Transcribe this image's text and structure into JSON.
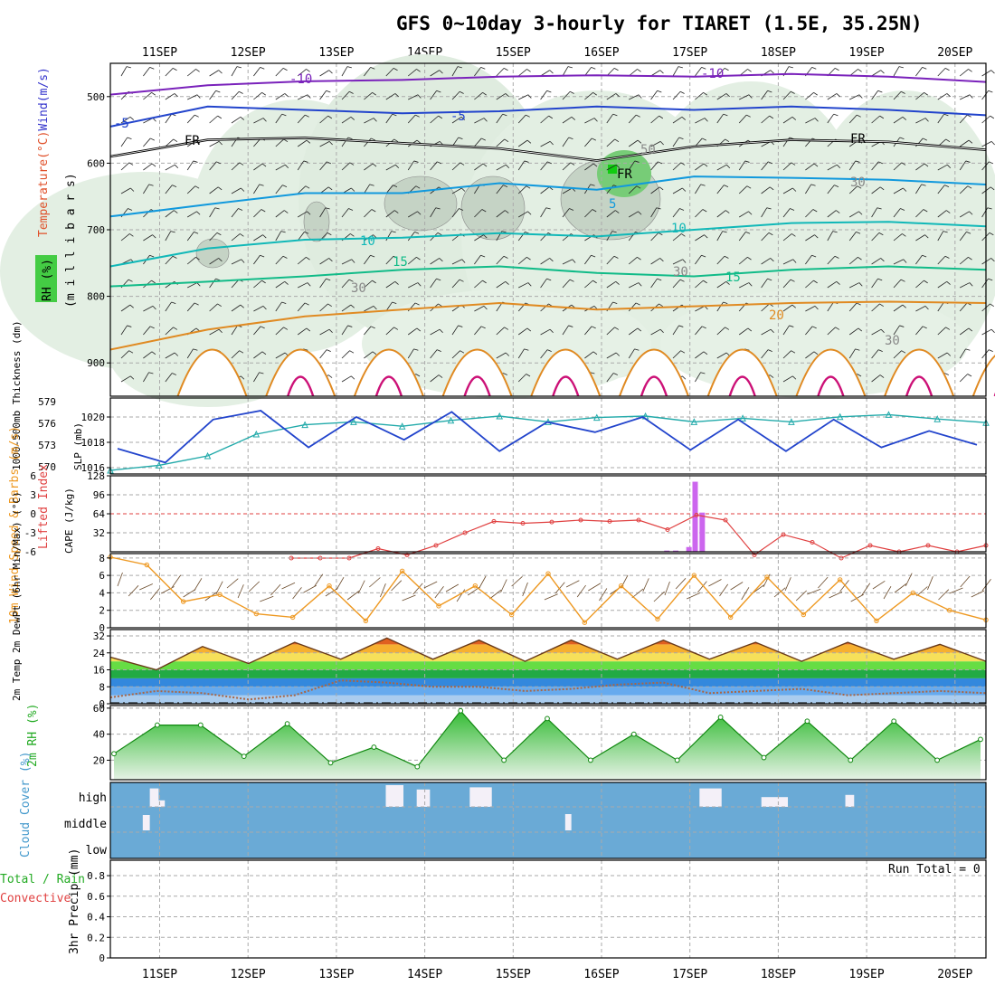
{
  "title": "GFS 0~10day 3-hourly for TIARET (1.5E, 35.25N)",
  "colors": {
    "green_rh": "#33cc33",
    "cyan_thickness": "#22aaaa",
    "blue_slp": "#2244cc",
    "purple_cape": "#cc66ee",
    "red_li": "#e04040",
    "orange_wind": "#ee9922",
    "cloud_blue": "#6aaad6",
    "precip_green": "#22aa22"
  },
  "chart_data": [
    {
      "panel": "upper-air",
      "type": "area",
      "x": [
        "11SEP",
        "12SEP",
        "13SEP",
        "14SEP",
        "15SEP",
        "16SEP",
        "17SEP",
        "18SEP",
        "19SEP",
        "20SEP"
      ],
      "ylabel_parts": [
        "Temperature",
        "(°C)",
        "Wind",
        "(m/s)"
      ],
      "ylabel_units": "(m i l l i b a r s)",
      "rh_legend": "RH (%)",
      "yticks": [
        500,
        600,
        700,
        800,
        900
      ],
      "ylim": [
        450,
        950
      ],
      "contour_labels": {
        "minus10": "-10",
        "minus5": "-5",
        "freeze": "FR",
        "plus5": "5",
        "plus10": "10",
        "plus15": "15",
        "plus20": "20",
        "rh30": "30",
        "rh50": "50"
      },
      "isotherms": [
        {
          "name": "-10",
          "values": [
            497,
            483,
            477,
            475,
            470,
            468,
            470,
            466,
            470,
            478
          ]
        },
        {
          "name": "-5",
          "values": [
            545,
            515,
            520,
            525,
            522,
            515,
            520,
            515,
            520,
            528
          ]
        },
        {
          "name": "FR",
          "values": [
            590,
            565,
            562,
            570,
            578,
            596,
            575,
            565,
            568,
            580
          ]
        },
        {
          "name": "5",
          "values": [
            680,
            662,
            645,
            645,
            630,
            640,
            620,
            622,
            625,
            632
          ]
        },
        {
          "name": "10",
          "values": [
            755,
            728,
            715,
            712,
            705,
            710,
            700,
            690,
            688,
            695
          ]
        },
        {
          "name": "15",
          "values": [
            785,
            778,
            770,
            760,
            755,
            765,
            770,
            760,
            755,
            760
          ]
        },
        {
          "name": "20",
          "values": [
            880,
            850,
            830,
            820,
            810,
            820,
            815,
            810,
            808,
            810
          ]
        }
      ]
    },
    {
      "panel": "slp-thickness",
      "type": "line",
      "ylabel_left": "1000-500mb Thickness (dm)",
      "ylabel_right": "SLP (mb)",
      "left_ticks": [
        570,
        573,
        576,
        579
      ],
      "right_ticks": [
        1016,
        1018,
        1020
      ],
      "left_ylim": [
        569,
        579.5
      ],
      "right_ylim": [
        1015.5,
        1021.5
      ],
      "thickness": [
        569.5,
        570.2,
        571.5,
        574.5,
        575.8,
        576.2,
        575.6,
        576.4,
        577.0,
        576.2,
        576.8,
        577.0,
        576.2,
        576.7,
        576.2,
        576.9,
        577.2,
        576.6,
        576.1
      ],
      "slp": [
        1017.5,
        1016.4,
        1019.8,
        1020.5,
        1017.6,
        1020.0,
        1018.2,
        1020.4,
        1017.3,
        1019.6,
        1018.8,
        1020.0,
        1017.4,
        1019.8,
        1017.3,
        1019.8,
        1017.6,
        1018.9,
        1017.8
      ]
    },
    {
      "panel": "cape-li",
      "type": "bar",
      "ylabel_left": "Lifted Index",
      "ylabel_right": "CAPE (J/kg)",
      "li_ticks": [
        "6",
        "3",
        "0",
        "-3",
        "-6"
      ],
      "cape_ticks": [
        32,
        64,
        96,
        128
      ],
      "cape_ylim": [
        0,
        128
      ],
      "li_ylim": [
        6,
        -6
      ],
      "li": [
        7,
        7,
        7,
        5.5,
        6.5,
        5,
        3,
        1.2,
        1.5,
        1.3,
        1.0,
        1.2,
        1.0,
        2.5,
        0.2,
        1.0,
        6.5,
        3.3,
        4.5,
        7,
        5,
        6,
        5,
        6,
        5
      ],
      "cape_bars": [
        {
          "x": 6.2,
          "v": 2
        },
        {
          "x": 6.3,
          "v": 2
        },
        {
          "x": 6.45,
          "v": 8
        },
        {
          "x": 6.52,
          "v": 118
        },
        {
          "x": 6.6,
          "v": 66
        }
      ]
    },
    {
      "panel": "10m-wind",
      "type": "line",
      "ylabel": "10m Wind Speed & Barbs (m/s)",
      "yticks": [
        0,
        2,
        4,
        6,
        8
      ],
      "ylim": [
        0,
        8.5
      ],
      "speed": [
        8.1,
        7.2,
        3.0,
        3.8,
        1.6,
        1.2,
        4.8,
        0.8,
        6.5,
        2.5,
        4.8,
        1.5,
        6.2,
        0.6,
        4.8,
        1.0,
        6.0,
        1.2,
        5.8,
        1.5,
        5.5,
        0.8,
        4.0,
        2.0,
        0.9
      ]
    },
    {
      "panel": "2m-temp",
      "type": "area",
      "ylabel": "2m Temp 2m DewPt (6hr Min/Max) (°C)",
      "yticks": [
        0,
        8,
        16,
        24,
        32
      ],
      "ylim": [
        0,
        35
      ],
      "temp": [
        22,
        16,
        27,
        19,
        29,
        21,
        31,
        21,
        30,
        20,
        30,
        21,
        30,
        21,
        29,
        20,
        29,
        21,
        28,
        20
      ],
      "dewpoint": [
        3,
        6,
        5,
        2,
        4,
        11,
        10,
        8,
        8,
        6,
        7,
        9,
        10,
        5,
        6,
        7,
        4,
        5,
        6,
        5
      ]
    },
    {
      "panel": "2m-rh",
      "type": "area",
      "ylabel": "2m RH (%)",
      "yticks": [
        20,
        40,
        60
      ],
      "ylim": [
        5,
        62
      ],
      "rh": [
        25,
        47,
        47,
        23,
        48,
        18,
        30,
        15,
        58,
        20,
        52,
        20,
        40,
        20,
        53,
        22,
        50,
        20,
        50,
        20,
        36
      ]
    },
    {
      "panel": "cloud-cover",
      "type": "bar",
      "ylabel": "Cloud Cover (%)",
      "levels": [
        "high",
        "middle",
        "low"
      ],
      "high_segments": [
        {
          "from": 0.38,
          "to": 0.48,
          "h": 0.85
        },
        {
          "from": 0.48,
          "to": 0.55,
          "h": 0.3
        },
        {
          "from": 3.05,
          "to": 3.25,
          "h": 1.0
        },
        {
          "from": 3.4,
          "to": 3.55,
          "h": 0.8
        },
        {
          "from": 4.0,
          "to": 4.25,
          "h": 0.9
        },
        {
          "from": 6.6,
          "to": 6.85,
          "h": 0.85
        },
        {
          "from": 7.3,
          "to": 7.6,
          "h": 0.45
        },
        {
          "from": 8.25,
          "to": 8.35,
          "h": 0.55
        }
      ],
      "middle_segments": [
        {
          "from": 0.3,
          "to": 0.38,
          "h": 0.85
        },
        {
          "from": 5.08,
          "to": 5.15,
          "h": 0.9
        }
      ]
    },
    {
      "panel": "precip",
      "type": "bar",
      "ylabel_parts": [
        "Total / Rain",
        "Convective"
      ],
      "ylabel_right": "3hr Precip (mm)",
      "yticks": [
        0,
        0.2,
        0.4,
        0.6,
        0.8
      ],
      "tick_labels": [
        "0",
        "0.2",
        "0.4",
        "0.6",
        "0.8"
      ],
      "ylim": [
        0,
        0.95
      ],
      "run_total": "Run Total = 0",
      "values": []
    }
  ]
}
